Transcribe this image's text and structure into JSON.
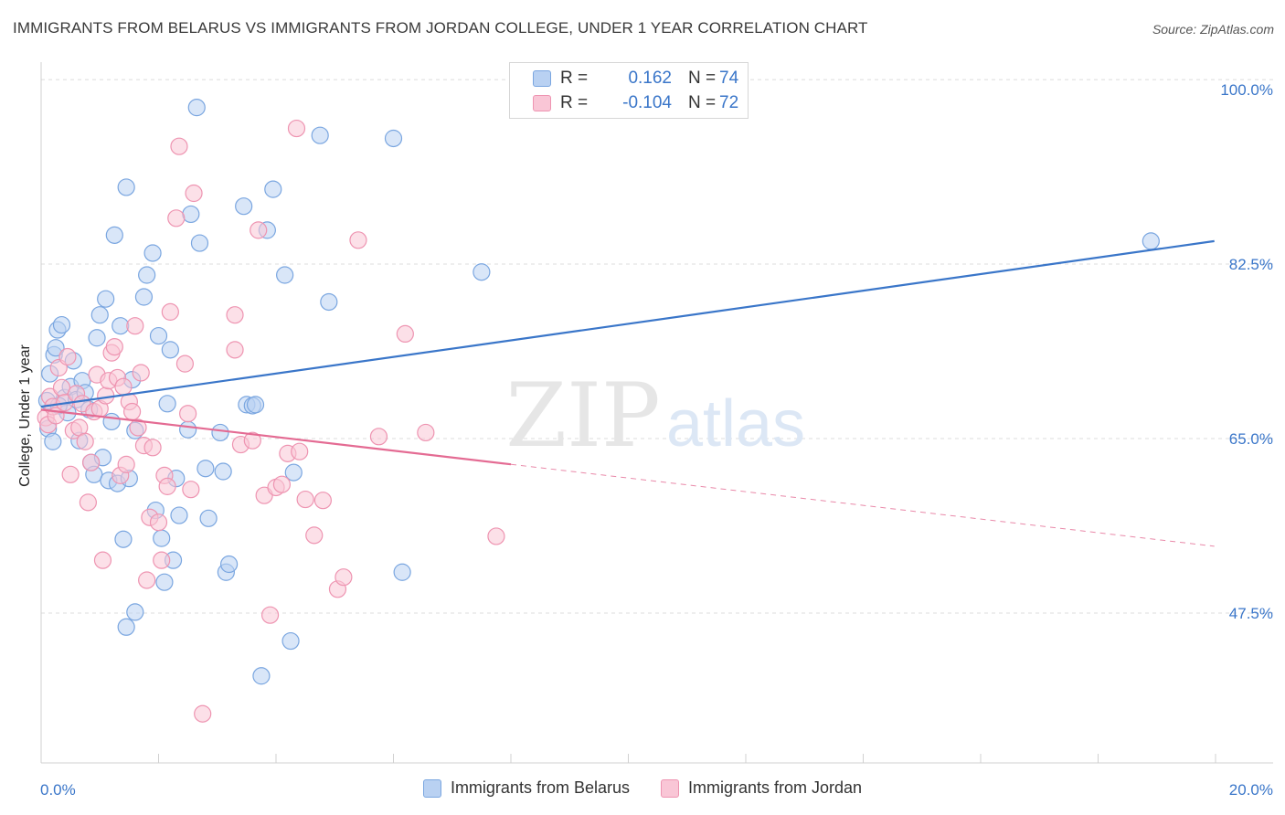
{
  "title": "IMMIGRANTS FROM BELARUS VS IMMIGRANTS FROM JORDAN COLLEGE, UNDER 1 YEAR CORRELATION CHART",
  "source": "Source: ZipAtlas.com",
  "watermark": {
    "zip": "ZIP",
    "atlas": "atlas"
  },
  "legend": {
    "r_label": "R =",
    "n_label": "N =",
    "rows": [
      {
        "r": "0.162",
        "n": "74",
        "fill": "#b9d1f2",
        "stroke": "#7aa6e0"
      },
      {
        "r": "-0.104",
        "n": "72",
        "fill": "#f9c6d6",
        "stroke": "#ee94b1"
      }
    ]
  },
  "chart_data": {
    "type": "scatter",
    "title": "IMMIGRANTS FROM BELARUS VS IMMIGRANTS FROM JORDAN COLLEGE, UNDER 1 YEAR CORRELATION CHART",
    "xlabel": "",
    "ylabel": "College, Under 1 year",
    "xlim": [
      0,
      20
    ],
    "ylim": [
      30,
      101
    ],
    "x_tick_labels": [
      {
        "value": 0,
        "label": "0.0%"
      },
      {
        "value": 20,
        "label": "20.0%"
      }
    ],
    "y_tick_labels": [
      {
        "value": 100,
        "label": "100.0%"
      },
      {
        "value": 82.5,
        "label": "82.5%"
      },
      {
        "value": 65,
        "label": "65.0%"
      },
      {
        "value": 47.5,
        "label": "47.5%"
      }
    ],
    "grid": true,
    "legend_position": "top-center",
    "series": [
      {
        "name": "Immigrants from Belarus",
        "color": "#3a76c9",
        "fill": "#b9d1f2",
        "stroke": "#7aa6e0",
        "trend": {
          "x0": 0,
          "y0": 68.2,
          "x1": 19.98,
          "y1": 84.8,
          "dashed_from": null
        },
        "points": [
          [
            0.12,
            66
          ],
          [
            0.1,
            68.8
          ],
          [
            0.15,
            71.5
          ],
          [
            0.2,
            64.7
          ],
          [
            0.22,
            73.4
          ],
          [
            0.25,
            74.1
          ],
          [
            0.28,
            75.9
          ],
          [
            0.35,
            76.4
          ],
          [
            0.4,
            69.1
          ],
          [
            0.45,
            67.6
          ],
          [
            0.5,
            70.2
          ],
          [
            0.55,
            72.8
          ],
          [
            0.6,
            68.9
          ],
          [
            0.65,
            64.8
          ],
          [
            0.7,
            70.8
          ],
          [
            0.75,
            69.6
          ],
          [
            0.82,
            67.9
          ],
          [
            0.85,
            62.6
          ],
          [
            0.9,
            61.4
          ],
          [
            0.95,
            75.1
          ],
          [
            1.0,
            77.4
          ],
          [
            1.05,
            63.1
          ],
          [
            1.1,
            79
          ],
          [
            1.15,
            60.8
          ],
          [
            1.2,
            66.7
          ],
          [
            1.25,
            85.4
          ],
          [
            1.3,
            60.5
          ],
          [
            1.35,
            76.3
          ],
          [
            1.4,
            54.9
          ],
          [
            1.45,
            90.2
          ],
          [
            1.5,
            61
          ],
          [
            1.55,
            70.9
          ],
          [
            1.6,
            65.8
          ],
          [
            1.75,
            79.2
          ],
          [
            1.8,
            81.4
          ],
          [
            1.9,
            83.6
          ],
          [
            1.95,
            57.8
          ],
          [
            2.0,
            75.3
          ],
          [
            2.05,
            55
          ],
          [
            2.1,
            50.6
          ],
          [
            2.2,
            73.9
          ],
          [
            2.3,
            61
          ],
          [
            2.35,
            57.3
          ],
          [
            2.5,
            65.9
          ],
          [
            2.55,
            87.5
          ],
          [
            2.65,
            98.2
          ],
          [
            2.7,
            84.6
          ],
          [
            2.8,
            62
          ],
          [
            2.85,
            57
          ],
          [
            3.05,
            65.6
          ],
          [
            3.1,
            61.7
          ],
          [
            3.15,
            51.6
          ],
          [
            3.2,
            52.4
          ],
          [
            3.45,
            88.3
          ],
          [
            3.5,
            68.4
          ],
          [
            3.6,
            68.3
          ],
          [
            3.65,
            68.4
          ],
          [
            3.75,
            41.2
          ],
          [
            3.85,
            85.9
          ],
          [
            3.95,
            90
          ],
          [
            4.15,
            81.4
          ],
          [
            4.25,
            44.7
          ],
          [
            4.3,
            61.6
          ],
          [
            4.75,
            95.4
          ],
          [
            4.9,
            78.7
          ],
          [
            6.0,
            95.1
          ],
          [
            6.15,
            51.6
          ],
          [
            7.5,
            81.7
          ],
          [
            18.9,
            84.8
          ],
          [
            1.6,
            47.6
          ],
          [
            1.45,
            46.1
          ],
          [
            2.25,
            52.8
          ],
          [
            2.15,
            68.5
          ],
          [
            0.3,
            68.3
          ]
        ]
      },
      {
        "name": "Immigrants from Jordan",
        "color": "#e46b93",
        "fill": "#f9c6d6",
        "stroke": "#ee94b1",
        "trend": {
          "x0": 0,
          "y0": 67.9,
          "x1": 19.98,
          "y1": 54.2,
          "dashed_from": 8.0
        },
        "points": [
          [
            0.08,
            67.1
          ],
          [
            0.12,
            66.4
          ],
          [
            0.15,
            69.2
          ],
          [
            0.2,
            68.2
          ],
          [
            0.25,
            67.3
          ],
          [
            0.3,
            72.1
          ],
          [
            0.35,
            70.1
          ],
          [
            0.4,
            68.6
          ],
          [
            0.45,
            73.2
          ],
          [
            0.5,
            61.4
          ],
          [
            0.55,
            65.8
          ],
          [
            0.6,
            69.5
          ],
          [
            0.65,
            66.1
          ],
          [
            0.7,
            68.5
          ],
          [
            0.75,
            64.7
          ],
          [
            0.8,
            58.6
          ],
          [
            0.85,
            62.6
          ],
          [
            0.9,
            67.7
          ],
          [
            0.95,
            71.4
          ],
          [
            1.0,
            68
          ],
          [
            1.05,
            52.8
          ],
          [
            1.1,
            69.3
          ],
          [
            1.15,
            70.8
          ],
          [
            1.2,
            73.6
          ],
          [
            1.25,
            74.2
          ],
          [
            1.3,
            71.1
          ],
          [
            1.35,
            61.3
          ],
          [
            1.4,
            70.2
          ],
          [
            1.45,
            62.4
          ],
          [
            1.5,
            68.7
          ],
          [
            1.55,
            67.7
          ],
          [
            1.6,
            76.3
          ],
          [
            1.65,
            66.1
          ],
          [
            1.7,
            71.6
          ],
          [
            1.75,
            64.3
          ],
          [
            1.8,
            50.8
          ],
          [
            1.85,
            57.1
          ],
          [
            1.9,
            64.1
          ],
          [
            2.0,
            56.6
          ],
          [
            2.05,
            52.8
          ],
          [
            2.1,
            61.3
          ],
          [
            2.15,
            60.2
          ],
          [
            2.2,
            77.7
          ],
          [
            2.3,
            87.1
          ],
          [
            2.35,
            94.3
          ],
          [
            2.45,
            72.5
          ],
          [
            2.5,
            67.5
          ],
          [
            2.55,
            59.9
          ],
          [
            2.6,
            89.6
          ],
          [
            2.75,
            37.4
          ],
          [
            3.3,
            73.9
          ],
          [
            3.3,
            77.4
          ],
          [
            3.4,
            64.4
          ],
          [
            3.6,
            64.8
          ],
          [
            3.7,
            85.9
          ],
          [
            3.8,
            59.3
          ],
          [
            3.9,
            47.3
          ],
          [
            4.0,
            60.1
          ],
          [
            4.1,
            60.4
          ],
          [
            4.2,
            63.5
          ],
          [
            4.35,
            96.1
          ],
          [
            4.4,
            63.7
          ],
          [
            4.5,
            58.9
          ],
          [
            4.65,
            55.3
          ],
          [
            4.8,
            58.8
          ],
          [
            5.05,
            49.9
          ],
          [
            5.15,
            51.1
          ],
          [
            5.4,
            84.9
          ],
          [
            5.75,
            65.2
          ],
          [
            6.2,
            75.5
          ],
          [
            6.55,
            65.6
          ],
          [
            7.75,
            55.2
          ]
        ]
      }
    ]
  }
}
